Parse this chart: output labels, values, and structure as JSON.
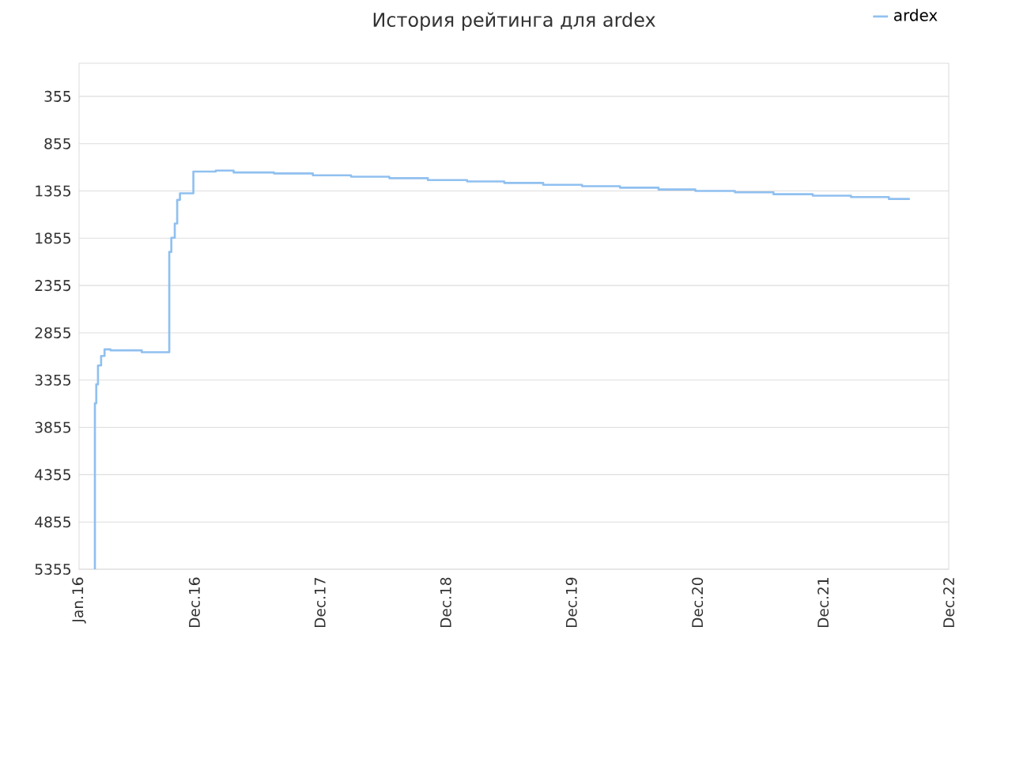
{
  "chart_data": {
    "type": "step",
    "title": "История рейтинга для ardex",
    "x": [
      "2016-02-15",
      "2016-02-16",
      "2016-02-20",
      "2016-02-25",
      "2016-03-05",
      "2016-03-15",
      "2016-04-01",
      "2016-07-01",
      "2016-09-18",
      "2016-09-19",
      "2016-09-25",
      "2016-10-05",
      "2016-10-12",
      "2016-10-20",
      "2016-11-28",
      "2017-02-01",
      "2017-03-25",
      "2017-07-20",
      "2017-11-10",
      "2018-03-01",
      "2018-06-20",
      "2018-10-10",
      "2019-02-01",
      "2019-05-20",
      "2019-09-10",
      "2020-01-01",
      "2020-04-20",
      "2020-08-10",
      "2020-11-25",
      "2021-03-20",
      "2021-07-10",
      "2021-11-01",
      "2022-02-20",
      "2022-06-10",
      "2022-08-10"
    ],
    "series": [
      {
        "name": "ardex",
        "color": "#90c0f0",
        "values": [
          5355,
          3600,
          3400,
          3200,
          3100,
          3030,
          3040,
          3060,
          3060,
          2000,
          1850,
          1700,
          1450,
          1380,
          1150,
          1140,
          1160,
          1170,
          1190,
          1205,
          1220,
          1240,
          1255,
          1270,
          1290,
          1305,
          1320,
          1340,
          1355,
          1370,
          1390,
          1405,
          1420,
          1440,
          1440
        ]
      }
    ],
    "xlim": [
      "2016-01-01",
      "2022-12-01"
    ],
    "xticks": [
      {
        "value": "2016-01-01",
        "label": "Jan.16"
      },
      {
        "value": "2016-12-01",
        "label": "Dec.16"
      },
      {
        "value": "2017-12-01",
        "label": "Dec.17"
      },
      {
        "value": "2018-12-01",
        "label": "Dec.18"
      },
      {
        "value": "2019-12-01",
        "label": "Dec.19"
      },
      {
        "value": "2020-12-01",
        "label": "Dec.20"
      },
      {
        "value": "2021-12-01",
        "label": "Dec.21"
      },
      {
        "value": "2022-12-01",
        "label": "Dec.22"
      }
    ],
    "ylim": [
      5355,
      5
    ],
    "yticks": [
      355,
      855,
      1355,
      1855,
      2355,
      2855,
      3355,
      3855,
      4355,
      4855,
      5355
    ],
    "grid": "y",
    "legend": "top right",
    "marker": "none",
    "line_style": "solid"
  }
}
